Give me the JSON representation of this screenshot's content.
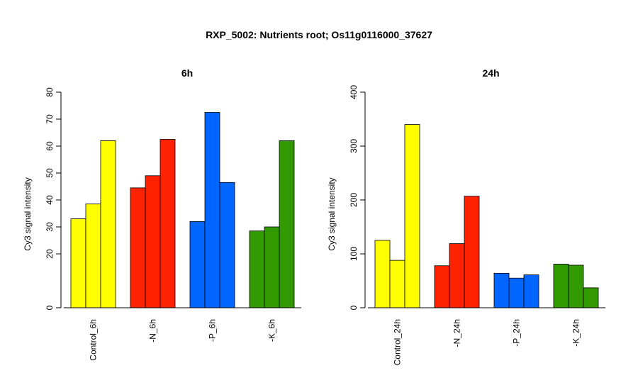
{
  "title": "RXP_5002: Nutrients root; Os11g0116000_37627",
  "chart_data": [
    {
      "type": "bar",
      "title": "6h",
      "ylabel": "Cy3 signal intensity",
      "ylim": [
        0,
        80
      ],
      "yticks": [
        0,
        20,
        30,
        40,
        50,
        60,
        70,
        80
      ],
      "groups": [
        {
          "label": "Control_6h",
          "color": "#ffff00",
          "values": [
            33,
            38.5,
            62
          ]
        },
        {
          "label": "-N_6h",
          "color": "#ff2200",
          "values": [
            44.5,
            49,
            62.5
          ]
        },
        {
          "label": "-P_6h",
          "color": "#0066ff",
          "values": [
            32,
            72.5,
            46.5
          ]
        },
        {
          "label": "-K_6h",
          "color": "#339900",
          "values": [
            28.5,
            30,
            62
          ]
        }
      ]
    },
    {
      "type": "bar",
      "title": "24h",
      "ylabel": "Cy3 signal intensity",
      "ylim": [
        0,
        400
      ],
      "yticks": [
        0,
        100,
        200,
        300,
        400
      ],
      "groups": [
        {
          "label": "Control_24h",
          "color": "#ffff00",
          "values": [
            125,
            88,
            340
          ]
        },
        {
          "label": "-N_24h",
          "color": "#ff2200",
          "values": [
            78,
            119,
            207
          ]
        },
        {
          "label": "-P_24h",
          "color": "#0066ff",
          "values": [
            64,
            55,
            61
          ]
        },
        {
          "label": "-K_24h",
          "color": "#339900",
          "values": [
            81,
            79,
            37
          ]
        }
      ]
    }
  ]
}
